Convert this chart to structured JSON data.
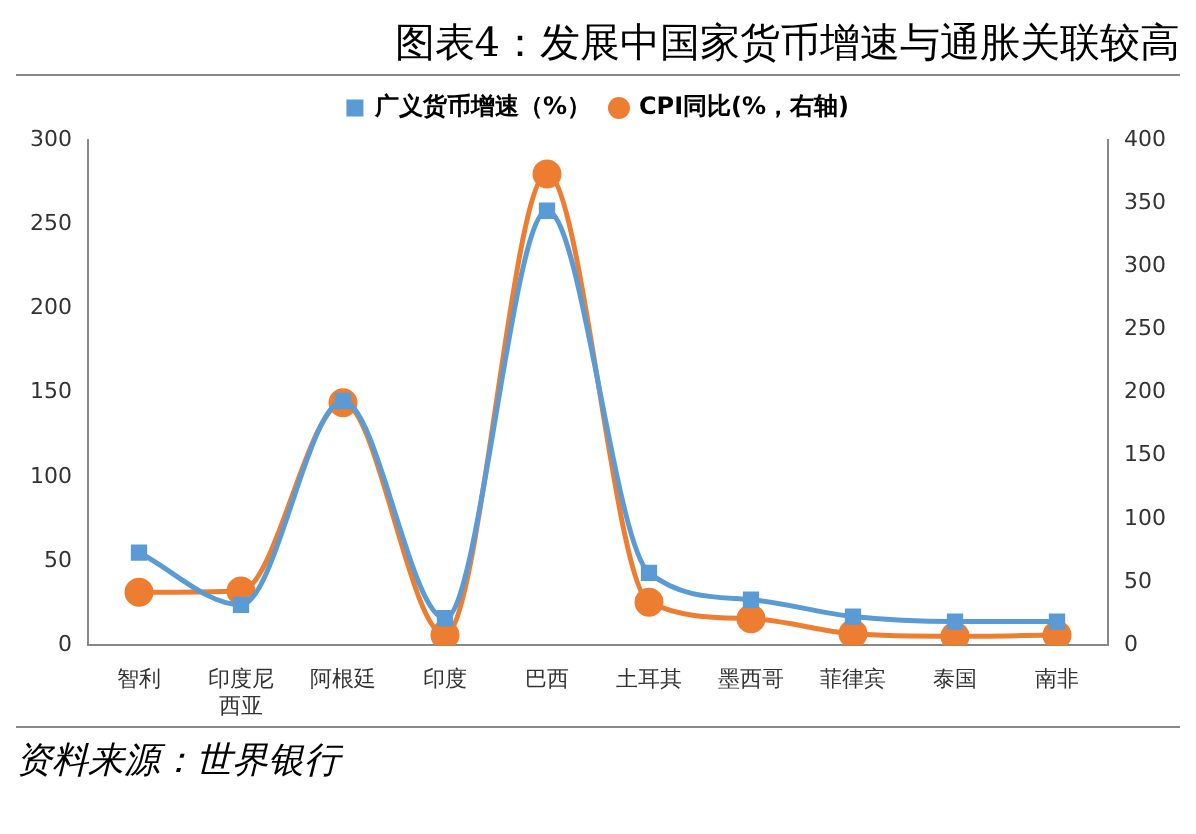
{
  "chart_data": {
    "type": "line",
    "title": "图表4：发展中国家货币增速与通胀关联较高",
    "categories": [
      "智利",
      "印度尼西亚",
      "阿根廷",
      "印度",
      "巴西",
      "土耳其",
      "墨西哥",
      "菲律宾",
      "泰国",
      "南非"
    ],
    "series": [
      {
        "name": "广义货币增速（%）",
        "color": "#5b9bd5",
        "marker": "square",
        "values": [
          55,
          24,
          145,
          16,
          258,
          43,
          27,
          17,
          14,
          14
        ]
      },
      {
        "name": "CPI同比(%，右轴)",
        "color": "#ed7d31",
        "marker": "circle",
        "axis": "y2",
        "values": [
          42,
          43,
          192,
          8,
          373,
          34,
          21,
          9,
          7,
          8
        ]
      }
    ],
    "ylim": [
      0,
      300
    ],
    "yticks": [
      0,
      50,
      100,
      150,
      200,
      250,
      300
    ],
    "y2lim": [
      0,
      400
    ],
    "y2ticks": [
      0,
      50,
      100,
      150,
      200,
      250,
      300,
      350,
      400
    ],
    "legend": "top",
    "grid": false,
    "annotations": [
      "资料来源：世界银行"
    ]
  }
}
